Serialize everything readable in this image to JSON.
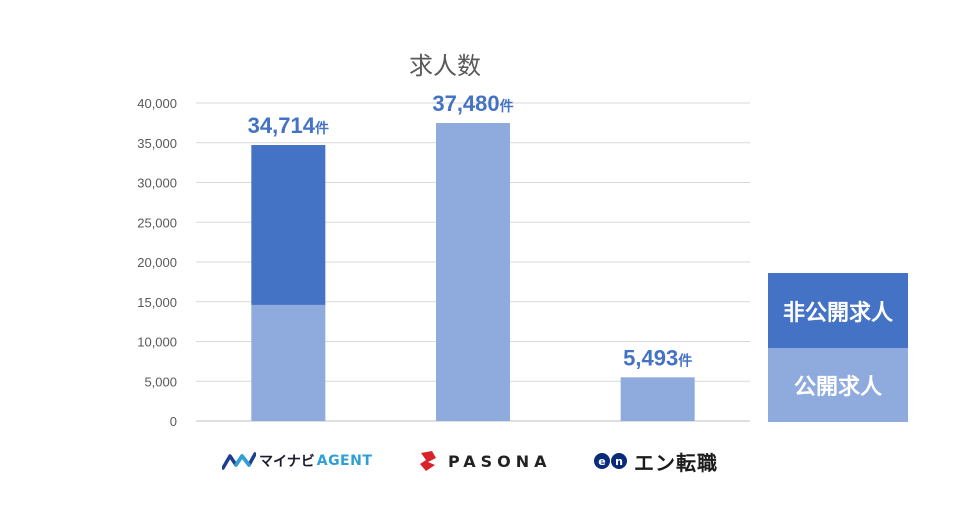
{
  "chart_data": {
    "type": "bar",
    "stacked": true,
    "title": "求人数",
    "categories": [
      "マイナビ AGENT",
      "PASONA",
      "エン転職"
    ],
    "series": [
      {
        "name": "公開求人",
        "color": "#8faadc",
        "values": [
          14600,
          37480,
          5493
        ]
      },
      {
        "name": "非公開求人",
        "color": "#4472c4",
        "values": [
          20114,
          0,
          0
        ]
      }
    ],
    "totals": [
      34714,
      37480,
      5493
    ],
    "data_labels": [
      "34,714件",
      "37,480件",
      "5,493件"
    ],
    "data_label_color": "#4472c4",
    "ylim": [
      0,
      40000
    ],
    "yticks": [
      0,
      5000,
      10000,
      15000,
      20000,
      25000,
      30000,
      35000,
      40000
    ],
    "ytick_labels": [
      "0",
      "5,000",
      "10,000",
      "15,000",
      "20,000",
      "25,000",
      "30,000",
      "35,000",
      "40,000"
    ],
    "grid": true,
    "legend_placement": "right",
    "legend": [
      "非公開求人",
      "公開求人"
    ]
  },
  "brands": {
    "mynavi_kana": "マイナビ",
    "mynavi_agent": "AGENT",
    "pasona": "PASONA",
    "en_badge_1": "e",
    "en_badge_2": "n",
    "en_name": "エン転職"
  }
}
